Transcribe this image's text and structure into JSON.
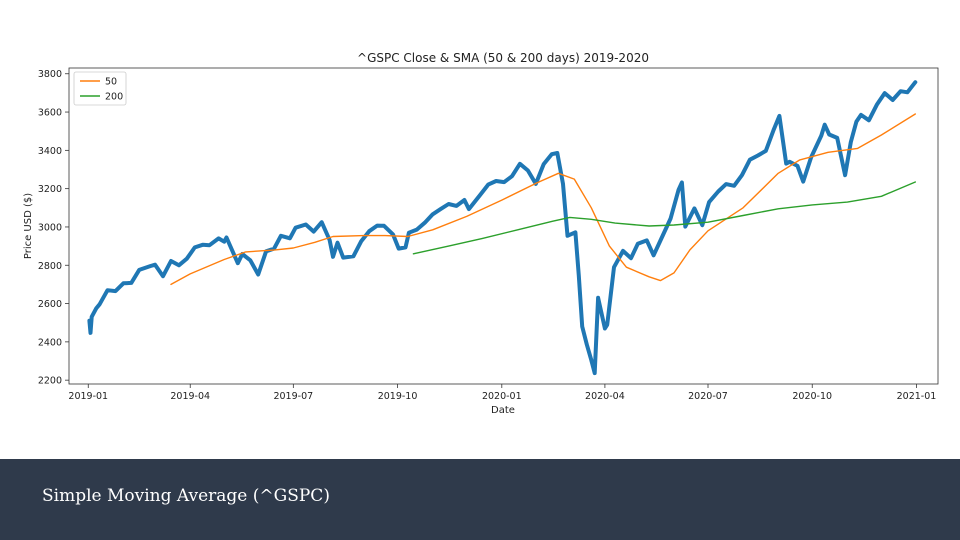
{
  "colors": {
    "price": "#1f77b4",
    "sma50": "#ff7f0e",
    "sma200": "#2ca02c",
    "footer": "#2f3a4b"
  },
  "footer": {
    "caption": "Simple Moving Average (^GSPC)"
  },
  "chart_data": {
    "type": "line",
    "title": "^GSPC Close & SMA (50 & 200 days) 2019-2020",
    "xlabel": "Date",
    "ylabel": "Price USD ($)",
    "xlim": [
      "2018-12-15",
      "2021-01-20"
    ],
    "ylim": [
      2180,
      3830
    ],
    "y_ticks": [
      2200,
      2400,
      2600,
      2800,
      3000,
      3200,
      3400,
      3600,
      3800
    ],
    "x_ticks": [
      {
        "date": "2019-01-01",
        "label": "2019-01"
      },
      {
        "date": "2019-04-01",
        "label": "2019-04"
      },
      {
        "date": "2019-07-01",
        "label": "2019-07"
      },
      {
        "date": "2019-10-01",
        "label": "2019-10"
      },
      {
        "date": "2020-01-01",
        "label": "2020-01"
      },
      {
        "date": "2020-04-01",
        "label": "2020-04"
      },
      {
        "date": "2020-07-01",
        "label": "2020-07"
      },
      {
        "date": "2020-10-01",
        "label": "2020-10"
      },
      {
        "date": "2021-01-01",
        "label": "2021-01"
      }
    ],
    "grid": false,
    "legend_position": "top-left",
    "series": [
      {
        "name": "",
        "role": "price",
        "points": [
          [
            "2019-01-02",
            2510
          ],
          [
            "2019-01-03",
            2447
          ],
          [
            "2019-01-04",
            2531
          ],
          [
            "2019-01-08",
            2575
          ],
          [
            "2019-01-11",
            2596
          ],
          [
            "2019-01-18",
            2670
          ],
          [
            "2019-01-25",
            2665
          ],
          [
            "2019-02-01",
            2706
          ],
          [
            "2019-02-08",
            2708
          ],
          [
            "2019-02-15",
            2776
          ],
          [
            "2019-02-25",
            2796
          ],
          [
            "2019-03-01",
            2803
          ],
          [
            "2019-03-08",
            2743
          ],
          [
            "2019-03-15",
            2822
          ],
          [
            "2019-03-22",
            2800
          ],
          [
            "2019-03-29",
            2834
          ],
          [
            "2019-04-05",
            2893
          ],
          [
            "2019-04-12",
            2907
          ],
          [
            "2019-04-18",
            2905
          ],
          [
            "2019-04-26",
            2940
          ],
          [
            "2019-05-01",
            2923
          ],
          [
            "2019-05-03",
            2945
          ],
          [
            "2019-05-13",
            2811
          ],
          [
            "2019-05-17",
            2859
          ],
          [
            "2019-05-24",
            2826
          ],
          [
            "2019-05-31",
            2752
          ],
          [
            "2019-06-07",
            2873
          ],
          [
            "2019-06-14",
            2887
          ],
          [
            "2019-06-20",
            2954
          ],
          [
            "2019-06-28",
            2941
          ],
          [
            "2019-07-03",
            2996
          ],
          [
            "2019-07-12",
            3013
          ],
          [
            "2019-07-19",
            2976
          ],
          [
            "2019-07-26",
            3025
          ],
          [
            "2019-08-02",
            2932
          ],
          [
            "2019-08-05",
            2844
          ],
          [
            "2019-08-09",
            2918
          ],
          [
            "2019-08-14",
            2840
          ],
          [
            "2019-08-23",
            2847
          ],
          [
            "2019-08-30",
            2926
          ],
          [
            "2019-09-06",
            2978
          ],
          [
            "2019-09-13",
            3007
          ],
          [
            "2019-09-19",
            3006
          ],
          [
            "2019-09-27",
            2961
          ],
          [
            "2019-10-02",
            2887
          ],
          [
            "2019-10-08",
            2893
          ],
          [
            "2019-10-11",
            2970
          ],
          [
            "2019-10-18",
            2986
          ],
          [
            "2019-10-25",
            3022
          ],
          [
            "2019-11-01",
            3066
          ],
          [
            "2019-11-08",
            3093
          ],
          [
            "2019-11-15",
            3120
          ],
          [
            "2019-11-22",
            3110
          ],
          [
            "2019-11-29",
            3141
          ],
          [
            "2019-12-03",
            3093
          ],
          [
            "2019-12-13",
            3168
          ],
          [
            "2019-12-20",
            3221
          ],
          [
            "2019-12-27",
            3240
          ],
          [
            "2020-01-03",
            3234
          ],
          [
            "2020-01-10",
            3265
          ],
          [
            "2020-01-17",
            3330
          ],
          [
            "2020-01-24",
            3295
          ],
          [
            "2020-01-31",
            3225
          ],
          [
            "2020-02-07",
            3328
          ],
          [
            "2020-02-14",
            3380
          ],
          [
            "2020-02-19",
            3386
          ],
          [
            "2020-02-24",
            3225
          ],
          [
            "2020-02-28",
            2954
          ],
          [
            "2020-03-06",
            2972
          ],
          [
            "2020-03-09",
            2746
          ],
          [
            "2020-03-12",
            2480
          ],
          [
            "2020-03-16",
            2386
          ],
          [
            "2020-03-20",
            2305
          ],
          [
            "2020-03-23",
            2237
          ],
          [
            "2020-03-26",
            2630
          ],
          [
            "2020-04-01",
            2470
          ],
          [
            "2020-04-03",
            2489
          ],
          [
            "2020-04-09",
            2790
          ],
          [
            "2020-04-17",
            2875
          ],
          [
            "2020-04-24",
            2837
          ],
          [
            "2020-04-30",
            2912
          ],
          [
            "2020-05-08",
            2930
          ],
          [
            "2020-05-14",
            2852
          ],
          [
            "2020-05-22",
            2955
          ],
          [
            "2020-05-29",
            3044
          ],
          [
            "2020-06-05",
            3193
          ],
          [
            "2020-06-08",
            3232
          ],
          [
            "2020-06-11",
            3002
          ],
          [
            "2020-06-19",
            3097
          ],
          [
            "2020-06-26",
            3009
          ],
          [
            "2020-07-02",
            3130
          ],
          [
            "2020-07-10",
            3185
          ],
          [
            "2020-07-17",
            3224
          ],
          [
            "2020-07-24",
            3215
          ],
          [
            "2020-07-31",
            3271
          ],
          [
            "2020-08-07",
            3351
          ],
          [
            "2020-08-14",
            3373
          ],
          [
            "2020-08-21",
            3397
          ],
          [
            "2020-08-28",
            3508
          ],
          [
            "2020-09-02",
            3580
          ],
          [
            "2020-09-08",
            3331
          ],
          [
            "2020-09-11",
            3340
          ],
          [
            "2020-09-18",
            3319
          ],
          [
            "2020-09-23",
            3237
          ],
          [
            "2020-09-30",
            3363
          ],
          [
            "2020-10-09",
            3477
          ],
          [
            "2020-10-12",
            3534
          ],
          [
            "2020-10-16",
            3483
          ],
          [
            "2020-10-23",
            3465
          ],
          [
            "2020-10-30",
            3270
          ],
          [
            "2020-11-04",
            3443
          ],
          [
            "2020-11-09",
            3550
          ],
          [
            "2020-11-13",
            3585
          ],
          [
            "2020-11-20",
            3557
          ],
          [
            "2020-11-27",
            3638
          ],
          [
            "2020-12-04",
            3699
          ],
          [
            "2020-12-11",
            3663
          ],
          [
            "2020-12-18",
            3709
          ],
          [
            "2020-12-24",
            3703
          ],
          [
            "2020-12-31",
            3756
          ]
        ]
      },
      {
        "name": "50",
        "role": "sma50",
        "points": [
          [
            "2019-03-15",
            2700
          ],
          [
            "2019-04-01",
            2755
          ],
          [
            "2019-05-01",
            2830
          ],
          [
            "2019-05-20",
            2870
          ],
          [
            "2019-06-15",
            2880
          ],
          [
            "2019-07-01",
            2890
          ],
          [
            "2019-07-20",
            2920
          ],
          [
            "2019-08-05",
            2950
          ],
          [
            "2019-09-01",
            2955
          ],
          [
            "2019-09-20",
            2955
          ],
          [
            "2019-10-10",
            2950
          ],
          [
            "2019-11-01",
            2985
          ],
          [
            "2019-12-01",
            3055
          ],
          [
            "2020-01-01",
            3140
          ],
          [
            "2020-02-01",
            3230
          ],
          [
            "2020-02-20",
            3280
          ],
          [
            "2020-03-05",
            3250
          ],
          [
            "2020-03-20",
            3100
          ],
          [
            "2020-04-05",
            2900
          ],
          [
            "2020-04-20",
            2790
          ],
          [
            "2020-05-10",
            2740
          ],
          [
            "2020-05-20",
            2720
          ],
          [
            "2020-06-01",
            2760
          ],
          [
            "2020-06-15",
            2880
          ],
          [
            "2020-07-01",
            2980
          ],
          [
            "2020-08-01",
            3100
          ],
          [
            "2020-09-01",
            3280
          ],
          [
            "2020-09-20",
            3350
          ],
          [
            "2020-10-15",
            3390
          ],
          [
            "2020-11-10",
            3410
          ],
          [
            "2020-12-01",
            3480
          ],
          [
            "2020-12-31",
            3590
          ]
        ]
      },
      {
        "name": "200",
        "role": "sma200",
        "points": [
          [
            "2019-10-15",
            2860
          ],
          [
            "2019-11-15",
            2900
          ],
          [
            "2019-12-15",
            2940
          ],
          [
            "2020-01-15",
            2985
          ],
          [
            "2020-02-15",
            3030
          ],
          [
            "2020-03-01",
            3050
          ],
          [
            "2020-03-20",
            3040
          ],
          [
            "2020-04-10",
            3020
          ],
          [
            "2020-05-10",
            3005
          ],
          [
            "2020-06-01",
            3010
          ],
          [
            "2020-07-01",
            3025
          ],
          [
            "2020-08-01",
            3060
          ],
          [
            "2020-09-01",
            3095
          ],
          [
            "2020-10-01",
            3115
          ],
          [
            "2020-11-01",
            3130
          ],
          [
            "2020-12-01",
            3160
          ],
          [
            "2020-12-31",
            3235
          ]
        ]
      }
    ]
  }
}
